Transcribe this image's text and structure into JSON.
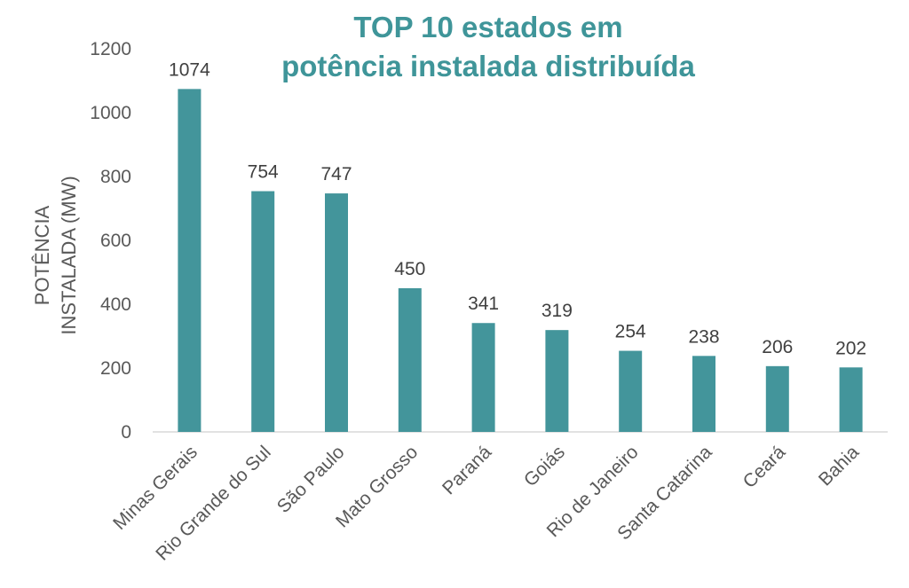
{
  "chart_data": {
    "type": "bar",
    "title_lines": [
      "TOP 10 estados em",
      "potência instalada distribuída"
    ],
    "ylabel_lines": [
      "POTÊNCIA",
      "INSTALADA (MW)"
    ],
    "xlabel": "",
    "categories": [
      "Minas Gerais",
      "Rio Grande do Sul",
      "São Paulo",
      "Mato Grosso",
      "Paraná",
      "Goiás",
      "Rio de Janeiro",
      "Santa Catarina",
      "Ceará",
      "Bahia"
    ],
    "values": [
      1074,
      754,
      747,
      450,
      341,
      319,
      254,
      238,
      206,
      202
    ],
    "ylim": [
      0,
      1200
    ],
    "yticks": [
      "0",
      "200",
      "400",
      "600",
      "800",
      "1000",
      "1200"
    ],
    "grid": false,
    "legend": "none",
    "bar_color": "#43959b",
    "title_color": "#3f9599"
  }
}
